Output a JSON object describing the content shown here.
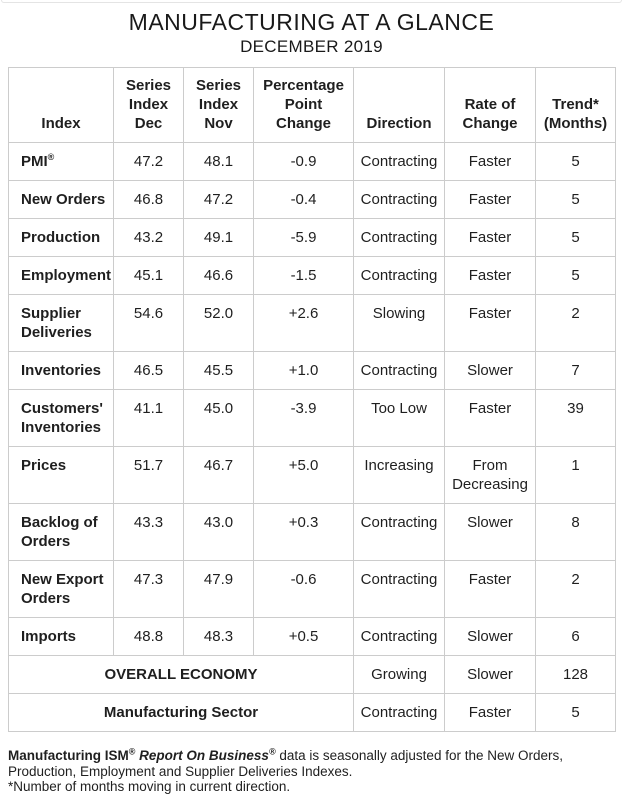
{
  "page": {
    "title": "MANUFACTURING AT A GLANCE",
    "subtitle": "DECEMBER 2019"
  },
  "table": {
    "headers": [
      "Index",
      "Series\nIndex\nDec",
      "Series\nIndex\nNov",
      "Percentage\nPoint\nChange",
      "Direction",
      "Rate of\nChange",
      "Trend*\n(Months)"
    ],
    "rows": [
      {
        "index": "PMI®",
        "dec": "47.2",
        "nov": "48.1",
        "change": "-0.9",
        "direction": "Contracting",
        "rate": "Faster",
        "trend": "5"
      },
      {
        "index": "New Orders",
        "dec": "46.8",
        "nov": "47.2",
        "change": "-0.4",
        "direction": "Contracting",
        "rate": "Faster",
        "trend": "5"
      },
      {
        "index": "Production",
        "dec": "43.2",
        "nov": "49.1",
        "change": "-5.9",
        "direction": "Contracting",
        "rate": "Faster",
        "trend": "5"
      },
      {
        "index": "Employment",
        "dec": "45.1",
        "nov": "46.6",
        "change": "-1.5",
        "direction": "Contracting",
        "rate": "Faster",
        "trend": "5"
      },
      {
        "index": "Supplier Deliveries",
        "dec": "54.6",
        "nov": "52.0",
        "change": "+2.6",
        "direction": "Slowing",
        "rate": "Faster",
        "trend": "2"
      },
      {
        "index": "Inventories",
        "dec": "46.5",
        "nov": "45.5",
        "change": "+1.0",
        "direction": "Contracting",
        "rate": "Slower",
        "trend": "7"
      },
      {
        "index": "Customers' Inventories",
        "dec": "41.1",
        "nov": "45.0",
        "change": "-3.9",
        "direction": "Too Low",
        "rate": "Faster",
        "trend": "39"
      },
      {
        "index": "Prices",
        "dec": "51.7",
        "nov": "46.7",
        "change": "+5.0",
        "direction": "Increasing",
        "rate": "From Decreasing",
        "trend": "1"
      },
      {
        "index": "Backlog of Orders",
        "dec": "43.3",
        "nov": "43.0",
        "change": "+0.3",
        "direction": "Contracting",
        "rate": "Slower",
        "trend": "8"
      },
      {
        "index": "New Export Orders",
        "dec": "47.3",
        "nov": "47.9",
        "change": "-0.6",
        "direction": "Contracting",
        "rate": "Faster",
        "trend": "2"
      },
      {
        "index": "Imports",
        "dec": "48.8",
        "nov": "48.3",
        "change": "+0.5",
        "direction": "Contracting",
        "rate": "Slower",
        "trend": "6"
      }
    ],
    "summary_rows": [
      {
        "label": "OVERALL ECONOMY",
        "direction": "Growing",
        "rate": "Slower",
        "trend": "128"
      },
      {
        "label": "Manufacturing Sector",
        "direction": "Contracting",
        "rate": "Faster",
        "trend": "5"
      }
    ]
  },
  "footnote": {
    "bold": "Manufacturing ISM®",
    "bold_italic": "Report On Business®",
    "text": "data is seasonally adjusted for the New Orders, Production, Employment and Supplier Deliveries Indexes.",
    "note2": "*Number of months moving in current direction."
  }
}
